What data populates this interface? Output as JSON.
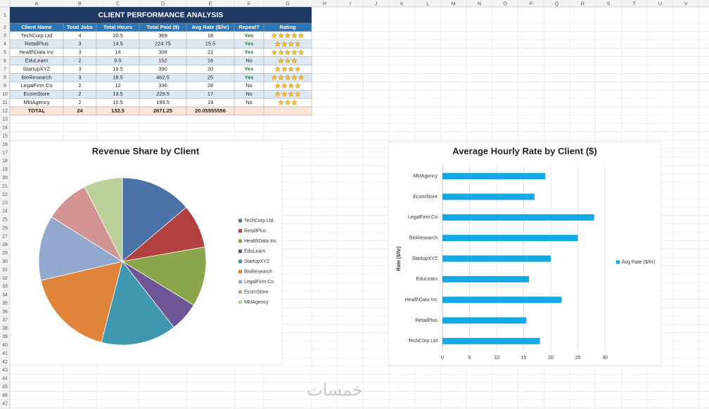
{
  "sheet": {
    "columns": [
      "A",
      "B",
      "C",
      "D",
      "E",
      "F",
      "G",
      "H",
      "I",
      "J",
      "K",
      "L",
      "M",
      "N",
      "O",
      "P",
      "Q",
      "R",
      "S",
      "T",
      "U",
      "V"
    ],
    "rows": [
      1,
      2,
      3,
      4,
      5,
      6,
      7,
      8,
      9,
      10,
      11,
      12,
      13,
      14,
      15,
      16,
      17,
      18,
      19,
      20,
      21,
      22,
      23,
      24,
      25,
      26,
      27,
      28,
      29,
      30,
      31,
      32,
      33,
      34,
      35,
      36,
      37,
      38,
      39,
      40,
      41,
      42,
      43,
      44,
      45,
      46,
      47
    ]
  },
  "table": {
    "title": "CLIENT PERFORMANCE ANALYSIS",
    "headers": [
      "Client Name",
      "Total Jobs",
      "Total Hours",
      "Total Paid ($)",
      "Avg Rate ($/hr)",
      "Repeat?",
      "Rating"
    ],
    "rows": [
      [
        "TechCorp Ltd",
        4,
        20.5,
        369,
        18,
        "Yes",
        5
      ],
      [
        "RetailPlus",
        3,
        14.5,
        224.75,
        15.5,
        "Yes",
        4
      ],
      [
        "HealthData Inc",
        3,
        14,
        308,
        22,
        "Yes",
        5
      ],
      [
        "EduLearn",
        2,
        9.5,
        152,
        16,
        "No",
        3
      ],
      [
        "StartupXYZ",
        3,
        19.5,
        390,
        20,
        "Yes",
        4
      ],
      [
        "BioResearch",
        3,
        18.5,
        462.5,
        25,
        "Yes",
        5
      ],
      [
        "LegalFirm Co",
        2,
        12,
        336,
        28,
        "No",
        4
      ],
      [
        "EcomStore",
        2,
        13.5,
        229.5,
        17,
        "No",
        4
      ],
      [
        "MktAgency",
        2,
        10.5,
        199.5,
        19,
        "No",
        3
      ]
    ],
    "total": [
      "TOTAL",
      24,
      132.5,
      2671.25,
      20.05555556
    ]
  },
  "chart_data": [
    {
      "type": "pie",
      "title": "Revenue Share by Client",
      "categories": [
        "TechCorp Ltd",
        "RetailPlus",
        "HealthData Inc",
        "EduLearn",
        "StartupXYZ",
        "BioResearch",
        "LegalFirm Co",
        "EcomStore",
        "MktAgency"
      ],
      "values": [
        369,
        224.75,
        308,
        152,
        390,
        462.5,
        336,
        229.5,
        199.5
      ],
      "colors": [
        "#4a72a8",
        "#b0413e",
        "#8ba64a",
        "#6d5596",
        "#3f98b0",
        "#e0843a",
        "#93a8cf",
        "#d29594",
        "#bcd09a"
      ],
      "legend": "right"
    },
    {
      "type": "bar",
      "orientation": "horizontal",
      "title": "Average Hourly Rate by Client ($)",
      "y_label": "Rate ($/hr)",
      "categories": [
        "TechCorp Ltd",
        "RetailPlus",
        "HealthData Inc",
        "EduLearn",
        "StartupXYZ",
        "BioResearch",
        "LegalFirm Co",
        "EcomStore",
        "MktAgency"
      ],
      "series": [
        {
          "name": "Avg Rate ($/hr)",
          "color": "#12a9e6",
          "values": [
            18,
            15.5,
            22,
            16,
            20,
            25,
            28,
            17,
            19
          ]
        }
      ],
      "xlim": [
        0,
        30
      ],
      "xticks": [
        0,
        5,
        10,
        15,
        20,
        25,
        30
      ],
      "grid": true,
      "legend": "right"
    }
  ],
  "watermark": "خمسات"
}
